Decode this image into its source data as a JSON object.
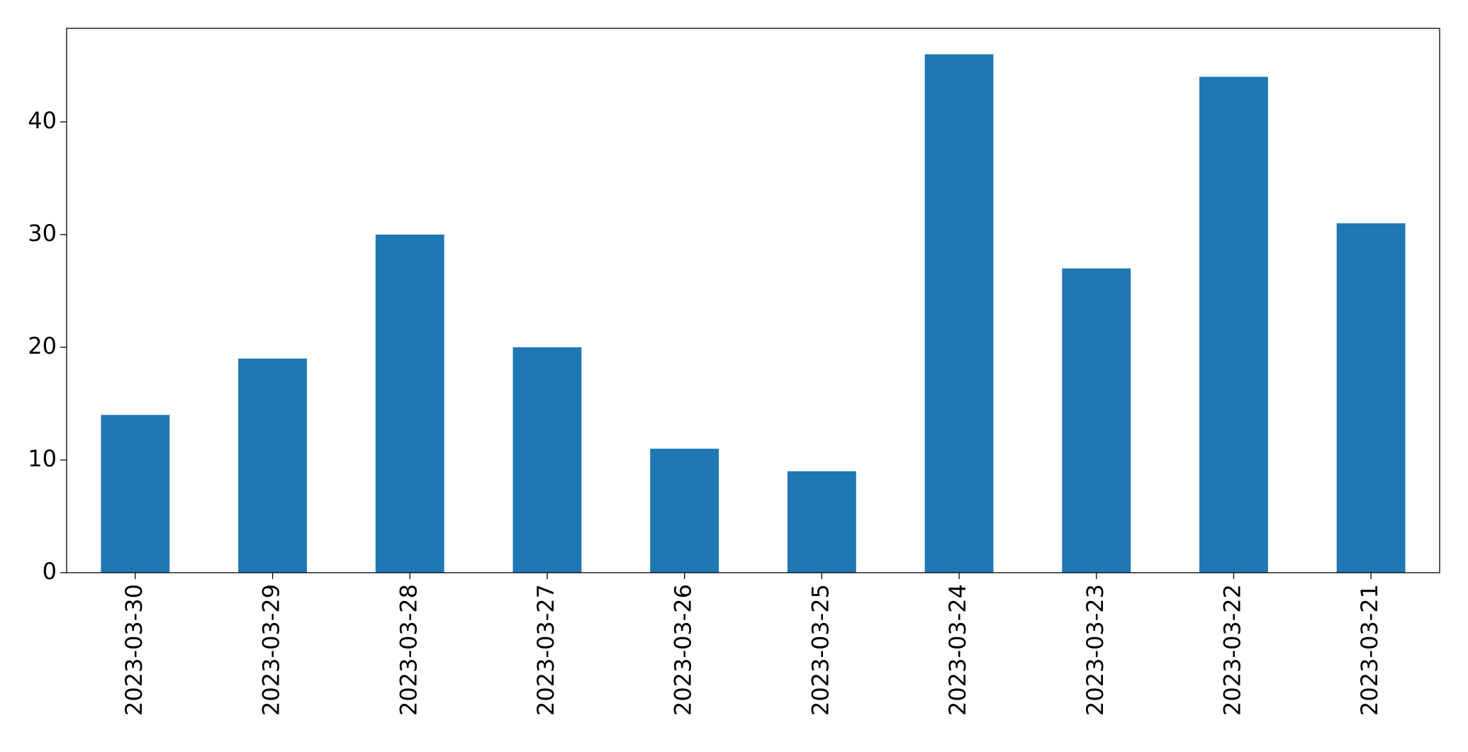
{
  "chart_data": {
    "type": "bar",
    "categories": [
      "2023-03-30",
      "2023-03-29",
      "2023-03-28",
      "2023-03-27",
      "2023-03-26",
      "2023-03-25",
      "2023-03-24",
      "2023-03-23",
      "2023-03-22",
      "2023-03-21"
    ],
    "values": [
      14,
      19,
      30,
      20,
      11,
      9,
      46,
      27,
      44,
      31
    ],
    "color": "#1f77b4",
    "ylim": [
      0,
      48.3
    ],
    "yticks": [
      0,
      10,
      20,
      30,
      40
    ],
    "grid": false
  }
}
